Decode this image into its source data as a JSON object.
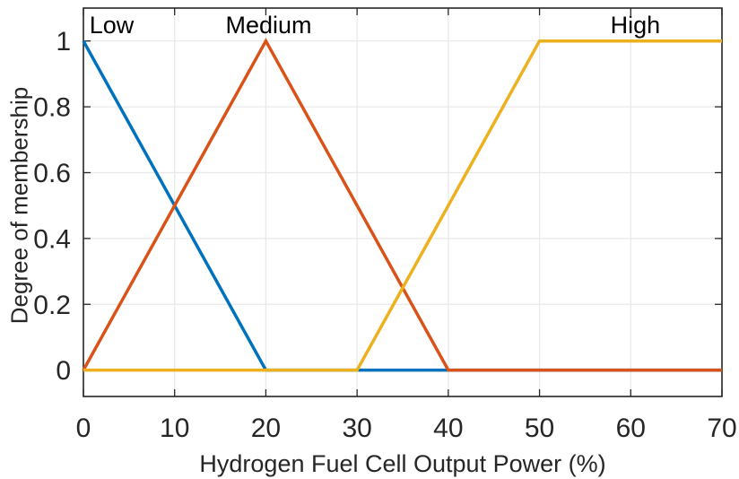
{
  "figure": {
    "background": "#ffffff",
    "text_color": "#262626",
    "axis_color": "#262626",
    "grid_color": "#e8e8e8"
  },
  "chart_data": {
    "type": "line",
    "title": "",
    "xlabel": "Hydrogen Fuel Cell Output Power (%)",
    "ylabel": "Degree of membership",
    "xlim": [
      0,
      70
    ],
    "ylim": [
      -0.08,
      1.1
    ],
    "xticks": [
      0,
      10,
      20,
      30,
      40,
      50,
      60,
      70
    ],
    "yticks": [
      0,
      0.2,
      0.4,
      0.6,
      0.8,
      1
    ],
    "grid": true,
    "legend_position": "none",
    "annotation_note": "membership function names drawn inside plot above each curve peak",
    "series": [
      {
        "name": "Low",
        "color": "#0072BD",
        "points": [
          [
            0,
            1
          ],
          [
            20,
            0
          ],
          [
            70,
            0
          ]
        ],
        "label_x": 3.1,
        "label_y": 1.05
      },
      {
        "name": "Medium",
        "color": "#D95319",
        "points": [
          [
            0,
            0
          ],
          [
            20,
            1
          ],
          [
            40,
            0
          ],
          [
            70,
            0
          ]
        ],
        "label_x": 20.3,
        "label_y": 1.05
      },
      {
        "name": "High",
        "color": "#EDB120",
        "points": [
          [
            0,
            0
          ],
          [
            30,
            0
          ],
          [
            50,
            1
          ],
          [
            70,
            1
          ]
        ],
        "label_x": 60.5,
        "label_y": 1.05
      }
    ]
  }
}
